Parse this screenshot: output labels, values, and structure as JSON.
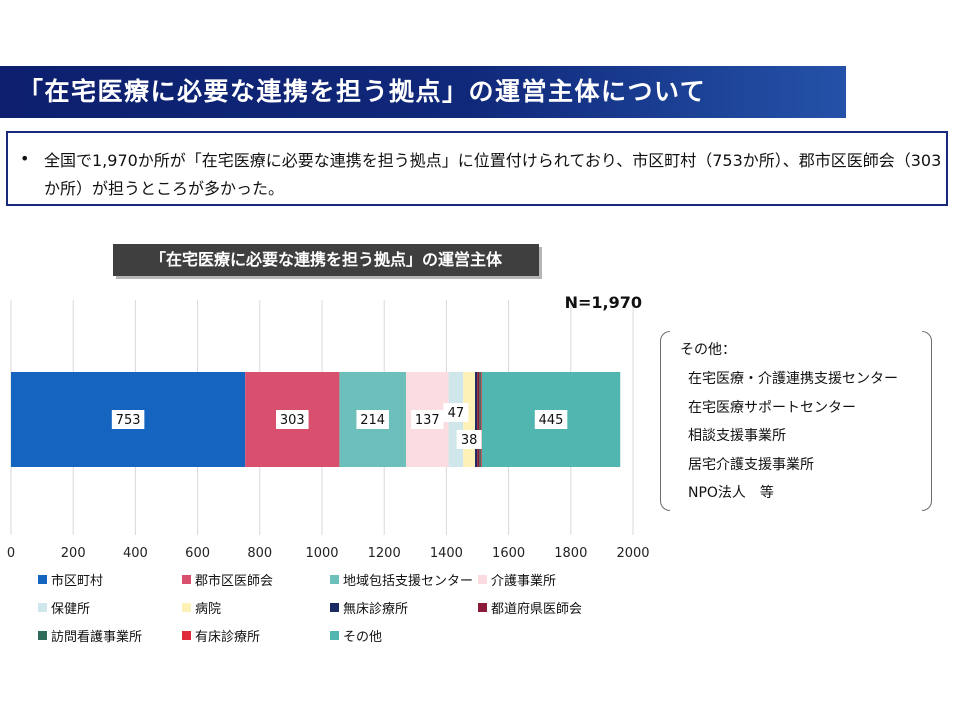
{
  "header": {
    "title": "「在宅医療に必要な連携を担う拠点」の運営主体について"
  },
  "summary": {
    "bullet": "•",
    "text": "全国で1,970か所が「在宅医療に必要な連携を担う拠点」に位置付けられており、市区町村（753か所）、郡市区医師会（303か所）が担うところが多かった。"
  },
  "chart_data": {
    "type": "bar",
    "orientation": "horizontal",
    "stacked": true,
    "title": "「在宅医療に必要な連携を担う拠点」の運営主体",
    "annotation": "N=1,970",
    "categories": [
      ""
    ],
    "xlim": [
      0,
      2000
    ],
    "xticks": [
      "0",
      "200",
      "400",
      "600",
      "800",
      "1000",
      "1200",
      "1400",
      "1600",
      "1800",
      "2000"
    ],
    "grid": true,
    "legend_position": "bottom",
    "series": [
      {
        "name": "市区町村",
        "values": [
          753
        ],
        "color": "#1565c0",
        "label": "753"
      },
      {
        "name": "郡市区医師会",
        "values": [
          303
        ],
        "color": "#d9506e",
        "label": "303"
      },
      {
        "name": "地域包括支援センター",
        "values": [
          214
        ],
        "color": "#6cbfba",
        "label": "214"
      },
      {
        "name": "介護事業所",
        "values": [
          137
        ],
        "color": "#fbdde1",
        "label": "137"
      },
      {
        "name": "保健所",
        "values": [
          47
        ],
        "color": "#cfe7ea",
        "label": "47"
      },
      {
        "name": "病院",
        "values": [
          38
        ],
        "color": "#fdf1b8",
        "label": "38"
      },
      {
        "name": "無床診療所",
        "values": [
          7
        ],
        "color": "#1b2a63",
        "label": ""
      },
      {
        "name": "都道府県医師会",
        "values": [
          7
        ],
        "color": "#8a1c3a",
        "label": ""
      },
      {
        "name": "訪問看護事業所",
        "values": [
          5
        ],
        "color": "#2e6b5b",
        "label": ""
      },
      {
        "name": "有床診療所",
        "values": [
          3
        ],
        "color": "#e02a3a",
        "label": ""
      },
      {
        "name": "その他",
        "values": [
          445
        ],
        "color": "#52b6b0",
        "label": "445"
      }
    ]
  },
  "others": {
    "heading": "その他：",
    "items": [
      "在宅医療・介護連携支援センター",
      "在宅医療サポートセンター",
      "相談支援事業所",
      "居宅介護支援事業所",
      "NPO法人　等"
    ]
  }
}
